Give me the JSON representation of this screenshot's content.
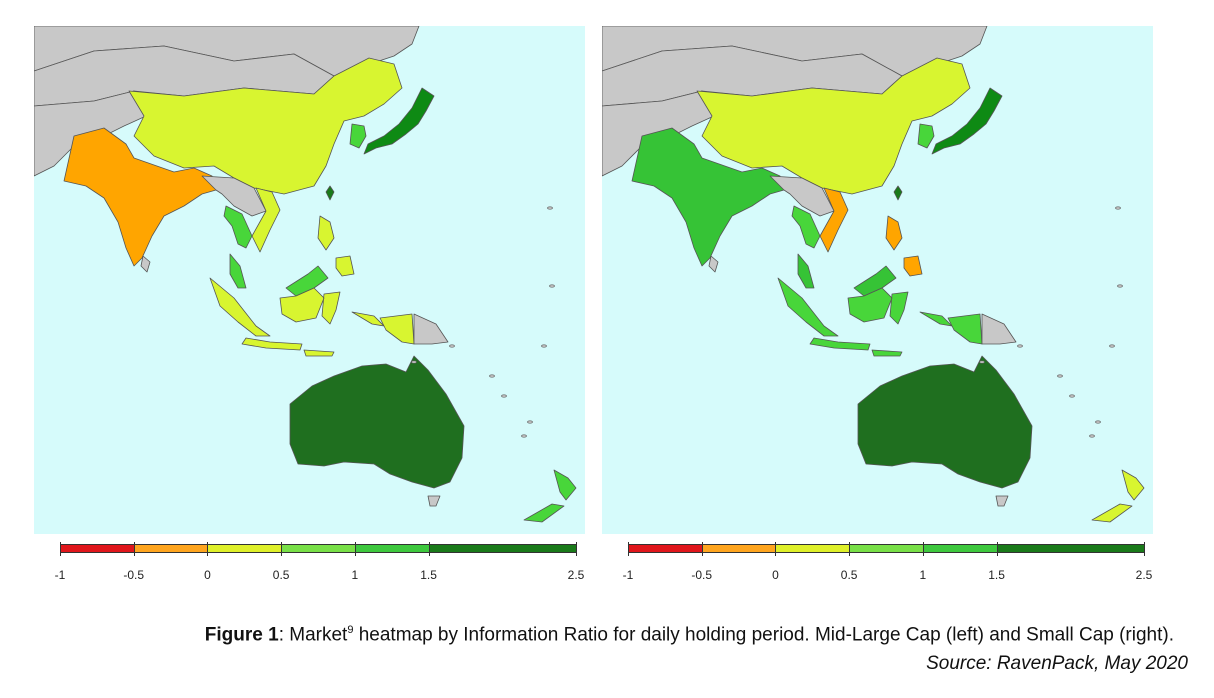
{
  "panels": [
    {
      "id": "left",
      "label": "Mid-Large Cap",
      "colors": {
        "india": "#ffa500",
        "china": "#d8f530",
        "japan": "#0e8a14",
        "korea": "#48d63a",
        "mongolia": "#c8c8c8",
        "thailand": "#48d63a",
        "vietnam": "#d8f530",
        "malaysia": "#48d63a",
        "indonesia": "#d8f530",
        "philippines": "#d8f530",
        "taiwan": "#1a7a1a",
        "australia": "#1f6f1f",
        "newzealand": "#48d63a",
        "borneo_my": "#48d63a",
        "papua_id": "#d8f530",
        "png": "#c8c8c8"
      }
    },
    {
      "id": "right",
      "label": "Small Cap",
      "colors": {
        "india": "#36c336",
        "china": "#d8f530",
        "japan": "#0e8a14",
        "korea": "#48d63a",
        "mongolia": "#c8c8c8",
        "thailand": "#48d63a",
        "vietnam": "#ffa500",
        "malaysia": "#36c336",
        "indonesia": "#48d63a",
        "philippines": "#ffa500",
        "taiwan": "#1a7a1a",
        "australia": "#1f6f1f",
        "newzealand": "#d8f530",
        "borneo_my": "#36c336",
        "papua_id": "#48d63a",
        "png": "#c8c8c8"
      }
    }
  ],
  "legend": {
    "segments": [
      {
        "from": -1,
        "to": -0.5,
        "color": "#e0161b"
      },
      {
        "from": -0.5,
        "to": 0,
        "color": "#ffa51f"
      },
      {
        "from": 0,
        "to": 0.5,
        "color": "#dff02a"
      },
      {
        "from": 0.5,
        "to": 1,
        "color": "#79e048"
      },
      {
        "from": 1,
        "to": 1.5,
        "color": "#3ec83e"
      },
      {
        "from": 1.5,
        "to": 2.5,
        "color": "#1a7a1a"
      }
    ],
    "ticks": [
      "-1",
      "-0.5",
      "0",
      "0.5",
      "1",
      "1.5",
      "2.5"
    ],
    "tick_values": [
      -1,
      -0.5,
      0,
      0.5,
      1,
      1.5,
      2.5
    ],
    "range": [
      -1,
      2.5
    ]
  },
  "caption": {
    "figure_label": "Figure 1",
    "text_before_sup": ": Market",
    "sup": "9",
    "text_after_sup": " heatmap by Information Ratio for daily holding period. Mid-Large Cap (left) and Small Cap (right).",
    "source": "Source: RavenPack, May 2020"
  },
  "style": {
    "ocean": "#d6fbfb",
    "land_other": "#c8c8c8",
    "border": "#555555"
  }
}
